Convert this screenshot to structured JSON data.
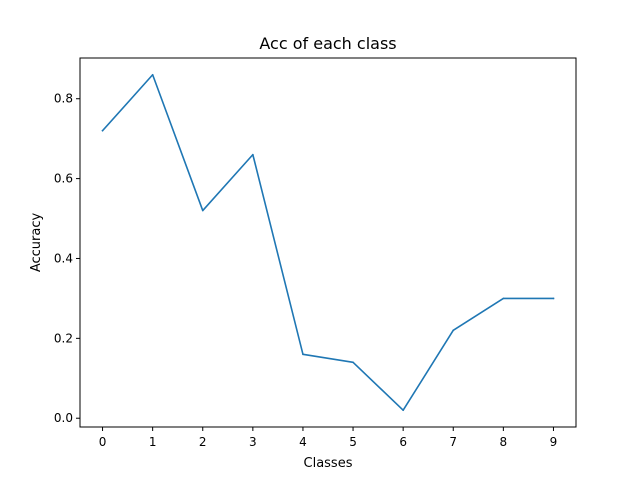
{
  "chart_data": {
    "type": "line",
    "title": "Acc of each class",
    "xlabel": "Classes",
    "ylabel": "Accuracy",
    "x": [
      0,
      1,
      2,
      3,
      4,
      5,
      6,
      7,
      8,
      9
    ],
    "x_ticks": [
      "0",
      "1",
      "2",
      "3",
      "4",
      "5",
      "6",
      "7",
      "8",
      "9"
    ],
    "y_ticks": [
      "0.0",
      "0.2",
      "0.4",
      "0.6",
      "0.8"
    ],
    "series": [
      {
        "values": [
          0.72,
          0.86,
          0.52,
          0.66,
          0.16,
          0.14,
          0.02,
          0.22,
          0.3,
          0.3
        ],
        "color": "#1f77b4"
      }
    ],
    "xlim": [
      -0.45,
      9.45
    ],
    "ylim": [
      -0.022,
      0.902
    ],
    "grid": false
  }
}
